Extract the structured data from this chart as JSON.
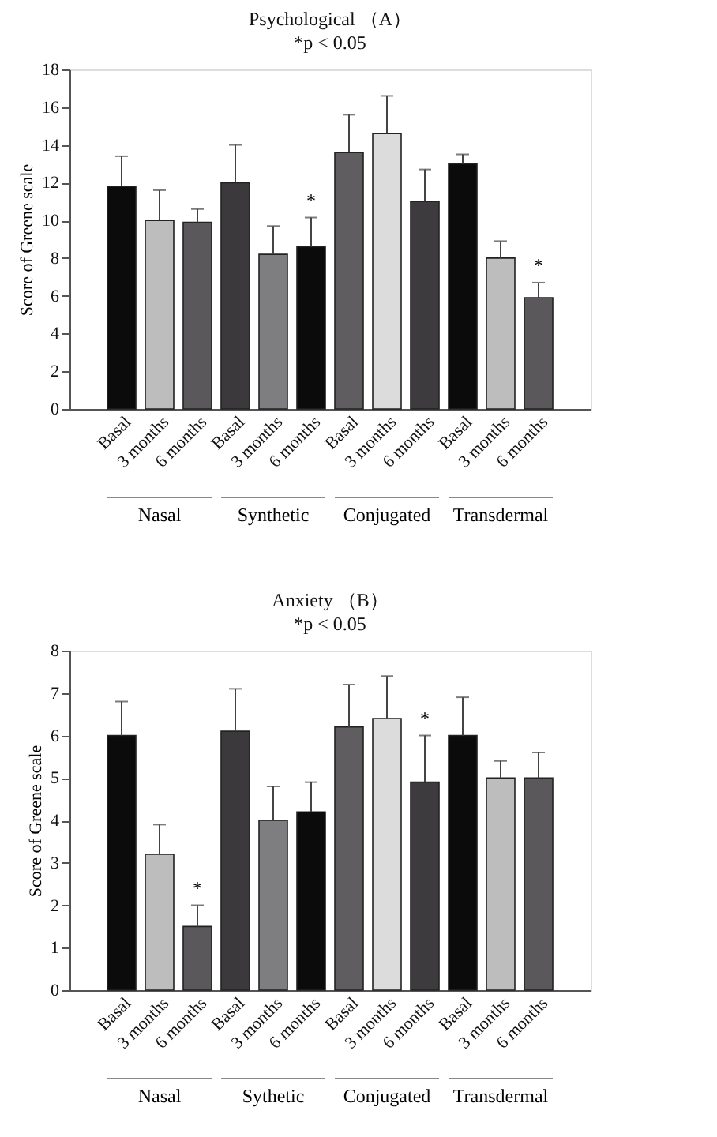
{
  "chart_data": [
    {
      "type": "bar",
      "title": "Psychological （A）",
      "ylabel": "Score of Greene scale",
      "annotations": [
        "*p < 0.05",
        "Nasal",
        "Synthetic",
        "Conjugated",
        "Transdermal"
      ],
      "categories": [
        "Basal",
        "3 months",
        "6 months",
        "Basal",
        "3 months",
        "6 months",
        "Basal",
        "3 months",
        "6 months",
        "Basal",
        "3 months",
        "6 months"
      ],
      "values": [
        11.8,
        10.0,
        9.9,
        12.0,
        8.2,
        8.6,
        13.6,
        14.6,
        11.0,
        13.0,
        8.0,
        5.9
      ],
      "errors": [
        [
          11.8,
          13.4
        ],
        [
          10.0,
          11.6
        ],
        [
          9.9,
          10.6
        ],
        [
          12.0,
          14.0
        ],
        [
          8.2,
          9.7
        ],
        [
          8.6,
          10.15
        ],
        [
          13.6,
          15.6
        ],
        [
          14.6,
          16.6
        ],
        [
          11.0,
          12.7
        ],
        [
          13.0,
          13.5
        ],
        [
          8.0,
          8.9
        ],
        [
          5.9,
          6.7
        ]
      ],
      "value_labels": [
        null,
        null,
        null,
        null,
        null,
        "*",
        null,
        null,
        null,
        null,
        null,
        "*"
      ],
      "colors": [
        "#0b0b0b",
        "#bdbdbd",
        "#5a585b",
        "#3b393b",
        "#7e7d80",
        "#0b0b0b",
        "#5f5d60",
        "#dcdcdc",
        "#3d3b3d",
        "#0b0b0b",
        "#bdbdbd",
        "#5a585b"
      ],
      "ylim": [
        0,
        18
      ],
      "yticks": [
        0,
        2,
        4,
        6,
        8,
        10,
        12,
        14,
        16,
        18
      ],
      "grid": false
    },
    {
      "type": "bar",
      "title": "Anxiety （B）",
      "ylabel": "Score of Greene scale",
      "annotations": [
        "*p < 0.05",
        "Nasal",
        "Sythetic",
        "Conjugated",
        "Transdermal"
      ],
      "categories": [
        "Basal",
        "3 months",
        "6 months",
        "Basal",
        "3 months",
        "6 months",
        "Basal",
        "3 months",
        "6 months",
        "Basal",
        "3 months",
        "6 months"
      ],
      "values": [
        6.0,
        3.2,
        1.5,
        6.1,
        4.0,
        4.2,
        6.2,
        6.4,
        4.9,
        6.0,
        5.0,
        5.0
      ],
      "errors": [
        [
          6.0,
          6.8
        ],
        [
          3.2,
          3.9
        ],
        [
          1.5,
          2.0
        ],
        [
          6.1,
          7.1
        ],
        [
          4.0,
          4.8
        ],
        [
          4.2,
          4.9
        ],
        [
          6.2,
          7.2
        ],
        [
          6.4,
          7.4
        ],
        [
          4.9,
          6.0
        ],
        [
          6.0,
          6.9
        ],
        [
          5.0,
          5.4
        ],
        [
          5.0,
          5.6
        ]
      ],
      "value_labels": [
        null,
        null,
        "*",
        null,
        null,
        null,
        null,
        null,
        "*",
        null,
        null,
        null
      ],
      "colors": [
        "#0b0b0b",
        "#bdbdbd",
        "#5a585b",
        "#3b393b",
        "#7e7d80",
        "#0b0b0b",
        "#5f5d60",
        "#dcdcdc",
        "#3d3b3d",
        "#0b0b0b",
        "#bdbdbd",
        "#5a585b"
      ],
      "ylim": [
        0,
        8
      ],
      "yticks": [
        0,
        1,
        2,
        3,
        4,
        5,
        6,
        7,
        8
      ],
      "grid": false
    }
  ]
}
